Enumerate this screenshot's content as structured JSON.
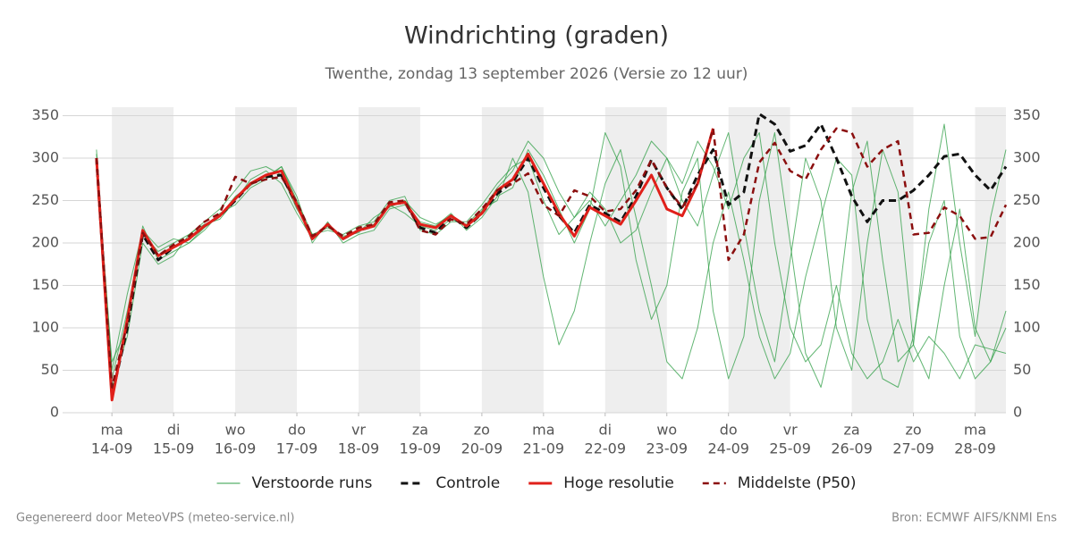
{
  "chart_data": {
    "type": "line",
    "title": "Windrichting (graden)",
    "subtitle": "Twenthe, zondag 13 september 2026 (Versie zo 12 uur)",
    "footer_left": "Gegenereerd door MeteoVPS (meteo-service.nl)",
    "footer_right": "Bron: ECMWF AIFS/KNMI Ens",
    "x": [
      -0.25,
      0,
      0.25,
      0.5,
      0.75,
      1,
      1.25,
      1.5,
      1.75,
      2,
      2.25,
      2.5,
      2.75,
      3,
      3.25,
      3.5,
      3.75,
      4,
      4.25,
      4.5,
      4.75,
      5,
      5.25,
      5.5,
      5.75,
      6,
      6.25,
      6.5,
      6.75,
      7,
      7.25,
      7.5,
      7.75,
      8,
      8.25,
      8.5,
      8.75,
      9,
      9.25,
      9.5,
      9.75,
      10,
      10.25,
      10.5,
      10.75,
      11,
      11.25,
      11.5,
      11.75,
      12,
      12.25,
      12.5,
      12.75,
      13,
      13.25,
      13.5,
      13.75,
      14,
      14.25,
      14.5
    ],
    "xlim": [
      -0.8,
      14.5
    ],
    "xticks": [
      {
        "value": 0,
        "label": "ma",
        "date": "14-09"
      },
      {
        "value": 1,
        "label": "di",
        "date": "15-09"
      },
      {
        "value": 2,
        "label": "wo",
        "date": "16-09"
      },
      {
        "value": 3,
        "label": "do",
        "date": "17-09"
      },
      {
        "value": 4,
        "label": "vr",
        "date": "18-09"
      },
      {
        "value": 5,
        "label": "za",
        "date": "19-09"
      },
      {
        "value": 6,
        "label": "zo",
        "date": "20-09"
      },
      {
        "value": 7,
        "label": "ma",
        "date": "21-09"
      },
      {
        "value": 8,
        "label": "di",
        "date": "22-09"
      },
      {
        "value": 9,
        "label": "wo",
        "date": "23-09"
      },
      {
        "value": 10,
        "label": "do",
        "date": "24-09"
      },
      {
        "value": 11,
        "label": "vr",
        "date": "25-09"
      },
      {
        "value": 12,
        "label": "za",
        "date": "26-09"
      },
      {
        "value": 13,
        "label": "zo",
        "date": "27-09"
      },
      {
        "value": 14,
        "label": "ma",
        "date": "28-09"
      }
    ],
    "ylim": [
      0,
      360
    ],
    "yticks": [
      0,
      50,
      100,
      150,
      200,
      250,
      300,
      350
    ],
    "y2lim": [
      0,
      360
    ],
    "y2ticks": [
      0,
      50,
      100,
      150,
      200,
      250,
      300,
      350
    ],
    "grid": true,
    "legend": "bottom",
    "ensemble": {
      "name": "Verstoorde runs",
      "color": "#2e9e44",
      "members": [
        [
          305,
          40,
          120,
          210,
          190,
          200,
          210,
          225,
          240,
          262,
          285,
          290,
          280,
          240,
          210,
          215,
          210,
          220,
          225,
          250,
          255,
          215,
          210,
          225,
          225,
          245,
          270,
          290,
          300,
          250,
          210,
          230,
          260,
          240,
          200,
          215,
          260,
          300,
          250,
          220,
          280,
          330,
          220,
          120,
          60,
          180,
          300,
          250,
          100,
          50,
          200,
          310,
          260,
          80,
          40,
          150,
          240,
          100,
          60,
          120
        ],
        [
          295,
          60,
          100,
          220,
          180,
          190,
          200,
          215,
          235,
          245,
          265,
          275,
          290,
          255,
          200,
          225,
          200,
          210,
          215,
          240,
          245,
          225,
          220,
          235,
          215,
          230,
          255,
          265,
          310,
          280,
          240,
          200,
          240,
          330,
          290,
          180,
          110,
          150,
          260,
          300,
          120,
          40,
          90,
          250,
          330,
          200,
          70,
          30,
          110,
          260,
          320,
          180,
          60,
          80,
          240,
          340,
          200,
          90,
          230,
          310
        ],
        [
          310,
          30,
          90,
          200,
          175,
          185,
          210,
          222,
          228,
          250,
          275,
          285,
          270,
          235,
          205,
          220,
          205,
          215,
          222,
          245,
          235,
          220,
          215,
          228,
          222,
          240,
          250,
          300,
          260,
          160,
          80,
          120,
          200,
          270,
          310,
          230,
          150,
          60,
          40,
          100,
          200,
          260,
          180,
          90,
          40,
          70,
          160,
          230,
          300,
          280,
          110,
          40,
          30,
          90,
          200,
          250,
          90,
          40,
          60,
          100
        ],
        [
          300,
          50,
          140,
          215,
          195,
          205,
          200,
          218,
          232,
          255,
          268,
          278,
          290,
          250,
          210,
          218,
          208,
          212,
          230,
          242,
          250,
          230,
          222,
          232,
          220,
          238,
          265,
          285,
          320,
          300,
          260,
          230,
          250,
          220,
          250,
          280,
          320,
          300,
          270,
          320,
          290,
          240,
          300,
          330,
          200,
          100,
          60,
          80,
          150,
          70,
          40,
          60,
          110,
          60,
          90,
          70,
          40,
          80,
          75,
          70
        ]
      ]
    },
    "series": [
      {
        "name": "Controle",
        "color": "#111111",
        "dash": "8,5",
        "width": 3,
        "values": [
          300,
          20,
          100,
          210,
          180,
          195,
          205,
          220,
          232,
          250,
          270,
          278,
          280,
          245,
          205,
          222,
          205,
          215,
          220,
          245,
          248,
          218,
          212,
          232,
          218,
          235,
          258,
          272,
          300,
          265,
          232,
          212,
          245,
          235,
          225,
          255,
          298,
          265,
          240,
          280,
          310,
          245,
          260,
          352,
          340,
          308,
          315,
          340,
          300,
          255,
          225,
          250,
          250,
          262,
          280,
          302,
          305,
          280,
          262,
          290
        ]
      },
      {
        "name": "Hoge resolutie",
        "color": "#e0201a",
        "dash": "none",
        "width": 3,
        "values": [
          300,
          15,
          110,
          215,
          185,
          195,
          205,
          220,
          232,
          252,
          270,
          280,
          285,
          245,
          205,
          222,
          205,
          215,
          220,
          245,
          248,
          222,
          218,
          232,
          220,
          235,
          262,
          275,
          305,
          270,
          235,
          208,
          242,
          232,
          222,
          250,
          280,
          240,
          232,
          270,
          335,
          null,
          null,
          null,
          null,
          null,
          null,
          null,
          null,
          null,
          null,
          null,
          null,
          null,
          null,
          null,
          null,
          null,
          null,
          null
        ]
      },
      {
        "name": "Middelste (P50)",
        "color": "#8b0f0f",
        "dash": "7,5",
        "width": 2.5,
        "values": [
          300,
          30,
          105,
          212,
          185,
          198,
          208,
          225,
          235,
          278,
          270,
          275,
          278,
          248,
          208,
          220,
          208,
          218,
          222,
          248,
          250,
          215,
          210,
          228,
          222,
          240,
          262,
          270,
          282,
          245,
          232,
          262,
          255,
          237,
          240,
          262,
          298,
          265,
          242,
          270,
          335,
          180,
          210,
          295,
          318,
          285,
          275,
          310,
          335,
          330,
          290,
          310,
          320,
          210,
          212,
          242,
          232,
          205,
          207,
          245
        ]
      }
    ]
  }
}
